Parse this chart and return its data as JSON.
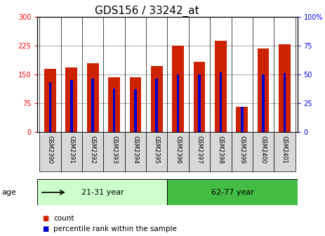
{
  "title": "GDS156 / 33242_at",
  "samples": [
    "GSM2390",
    "GSM2391",
    "GSM2392",
    "GSM2393",
    "GSM2394",
    "GSM2395",
    "GSM2396",
    "GSM2397",
    "GSM2398",
    "GSM2399",
    "GSM2400",
    "GSM2401"
  ],
  "counts": [
    165,
    168,
    178,
    143,
    143,
    172,
    224,
    183,
    237,
    65,
    218,
    228
  ],
  "percentiles": [
    43,
    45,
    46,
    38,
    37,
    46,
    50,
    50,
    52,
    22,
    50,
    51
  ],
  "ylim_left": [
    0,
    300
  ],
  "ylim_right": [
    0,
    100
  ],
  "yticks_left": [
    0,
    75,
    150,
    225,
    300
  ],
  "yticks_right": [
    0,
    25,
    50,
    75,
    100
  ],
  "groups": [
    {
      "label": "21-31 year",
      "start": 0,
      "end": 6,
      "color": "#ccffcc"
    },
    {
      "label": "62-77 year",
      "start": 6,
      "end": 12,
      "color": "#44bb44"
    }
  ],
  "group_label": "age",
  "bar_color": "#cc2200",
  "percentile_color": "#0000cc",
  "bar_width": 0.55,
  "pct_bar_width": 0.12,
  "background_color": "#ffffff",
  "title_fontsize": 11,
  "tick_fontsize": 7,
  "legend_fontsize": 7.5,
  "legend_items": [
    "count",
    "percentile rank within the sample"
  ],
  "right_tick_labels": [
    "0",
    "25",
    "50",
    "75",
    "100%"
  ]
}
